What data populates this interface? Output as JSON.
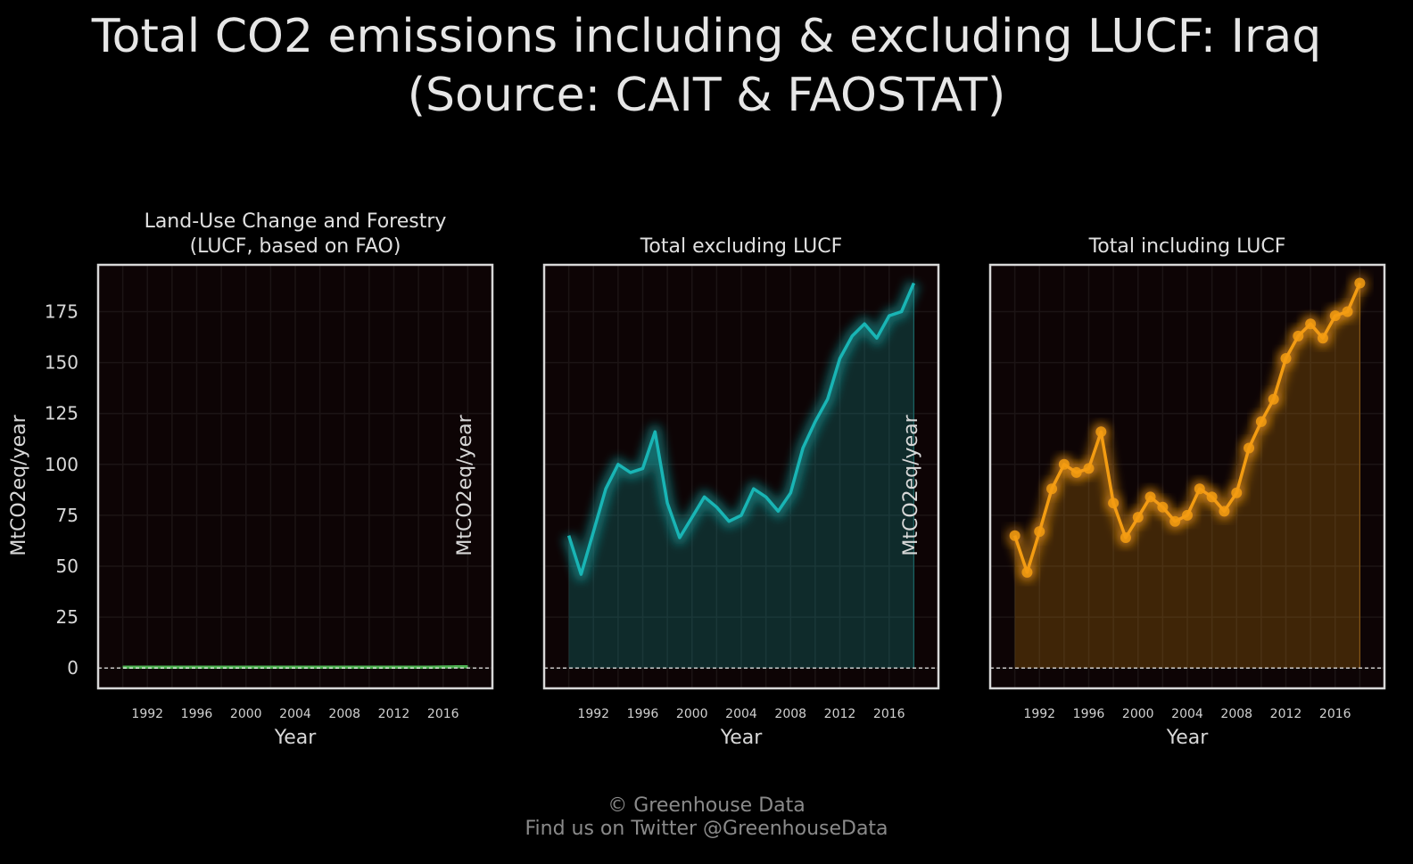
{
  "header": {
    "title_line1": "Total CO2 emissions including & excluding LUCF: Iraq",
    "title_line2": "(Source: CAIT & FAOSTAT)"
  },
  "footer": {
    "line1": "© Greenhouse Data",
    "line2": "Find us on Twitter @GreenhouseData"
  },
  "chart_data": [
    {
      "type": "area",
      "title": "Land-Use Change and Forestry\n(LUCF, based on FAO)",
      "xlabel": "Year",
      "ylabel": "MtCO2eq/year",
      "xlim": [
        1988,
        2020
      ],
      "ylim": [
        -10,
        198
      ],
      "yticks": [
        0,
        25,
        50,
        75,
        100,
        125,
        150,
        175
      ],
      "xticks": [
        1992,
        1996,
        2000,
        2004,
        2008,
        2012,
        2016
      ],
      "x": [
        1990,
        1991,
        1992,
        1993,
        1994,
        1995,
        1996,
        1997,
        1998,
        1999,
        2000,
        2001,
        2002,
        2003,
        2004,
        2005,
        2006,
        2007,
        2008,
        2009,
        2010,
        2011,
        2012,
        2013,
        2014,
        2015,
        2016,
        2017,
        2018
      ],
      "values": [
        0.4,
        0.4,
        0.4,
        0.4,
        0.4,
        0.4,
        0.4,
        0.4,
        0.4,
        0.4,
        0.4,
        0.4,
        0.4,
        0.4,
        0.4,
        0.4,
        0.4,
        0.4,
        0.4,
        0.4,
        0.4,
        0.4,
        0.4,
        0.4,
        0.4,
        0.4,
        0.5,
        0.6,
        0.6
      ],
      "color": "#4caf50",
      "markers": false,
      "grid": true
    },
    {
      "type": "area",
      "title": "Total excluding LUCF",
      "xlabel": "Year",
      "ylabel": "MtCO2eq/year",
      "xlim": [
        1988,
        2020
      ],
      "ylim": [
        -10,
        198
      ],
      "xticks": [
        1992,
        1996,
        2000,
        2004,
        2008,
        2012,
        2016
      ],
      "x": [
        1990,
        1991,
        1992,
        1993,
        1994,
        1995,
        1996,
        1997,
        1998,
        1999,
        2000,
        2001,
        2002,
        2003,
        2004,
        2005,
        2006,
        2007,
        2008,
        2009,
        2010,
        2011,
        2012,
        2013,
        2014,
        2015,
        2016,
        2017,
        2018
      ],
      "values": [
        65,
        46,
        67,
        88,
        100,
        96,
        98,
        116,
        81,
        64,
        74,
        84,
        79,
        72,
        75,
        88,
        84,
        77,
        86,
        108,
        121,
        132,
        152,
        163,
        169,
        162,
        173,
        175,
        189
      ],
      "color": "#19b5b5",
      "markers": false,
      "grid": true
    },
    {
      "type": "area",
      "title": "Total including LUCF",
      "xlabel": "Year",
      "ylabel": "MtCO2eq/year",
      "xlim": [
        1988,
        2020
      ],
      "ylim": [
        -10,
        198
      ],
      "xticks": [
        1992,
        1996,
        2000,
        2004,
        2008,
        2012,
        2016
      ],
      "x": [
        1990,
        1991,
        1992,
        1993,
        1994,
        1995,
        1996,
        1997,
        1998,
        1999,
        2000,
        2001,
        2002,
        2003,
        2004,
        2005,
        2006,
        2007,
        2008,
        2009,
        2010,
        2011,
        2012,
        2013,
        2014,
        2015,
        2016,
        2017,
        2018
      ],
      "values": [
        65,
        47,
        67,
        88,
        100,
        96,
        98,
        116,
        81,
        64,
        74,
        84,
        79,
        72,
        75,
        88,
        84,
        77,
        86,
        108,
        121,
        132,
        152,
        163,
        169,
        162,
        173,
        175,
        189
      ],
      "color": "#f39c12",
      "markers": true,
      "grid": true
    }
  ]
}
